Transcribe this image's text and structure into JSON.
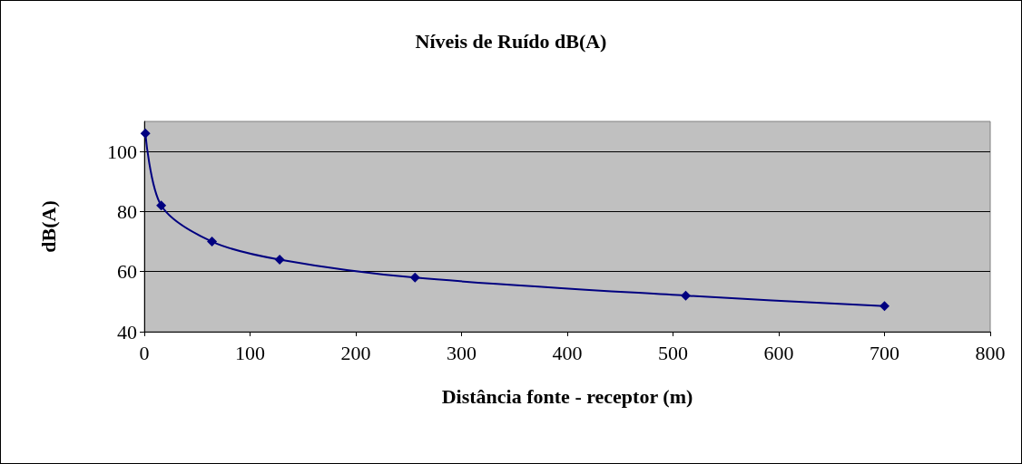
{
  "chart_data": {
    "type": "line",
    "title": "Níveis de Ruído dB(A)",
    "xlabel": "Distância fonte - receptor (m)",
    "ylabel": "dB(A)",
    "x": [
      1,
      16,
      64,
      128,
      256,
      512,
      700
    ],
    "series": [
      {
        "color": "#000080",
        "values": [
          106,
          82,
          70,
          64,
          58,
          52,
          48.5
        ]
      }
    ],
    "xlim": [
      0,
      800
    ],
    "xticks": [
      0,
      100,
      200,
      300,
      400,
      500,
      600,
      700,
      800
    ],
    "ylim": [
      40,
      110
    ],
    "yticks": [
      40,
      60,
      80,
      100
    ],
    "grid": "y",
    "marker": "diamond",
    "line_style": "solid"
  }
}
